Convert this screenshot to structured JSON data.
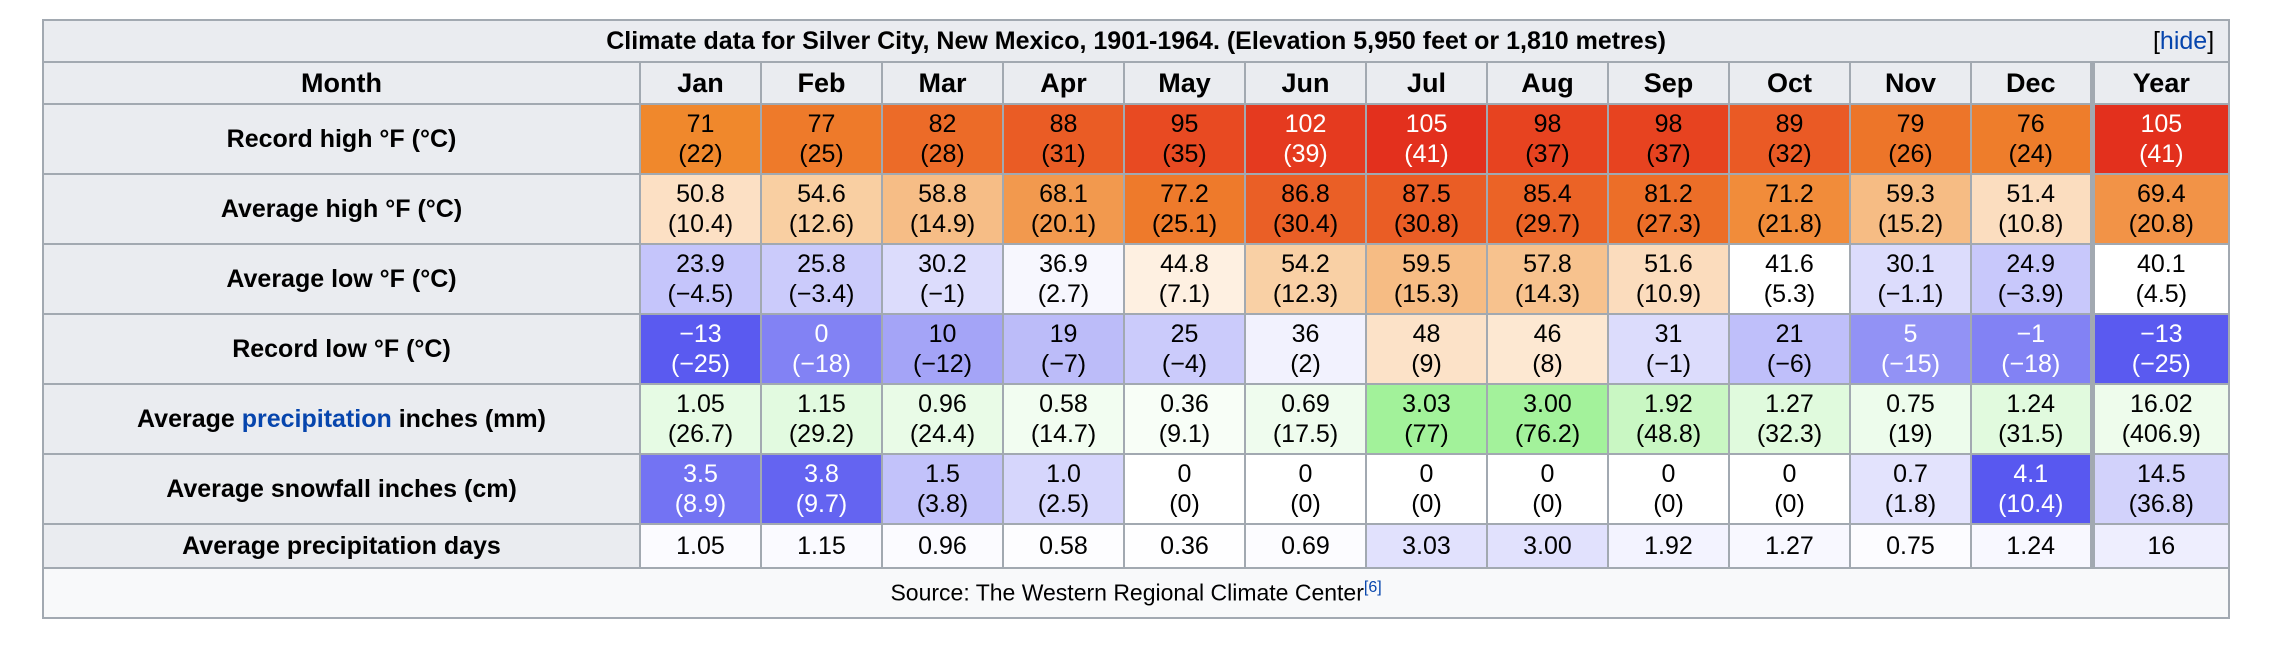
{
  "caption": "Climate data for Silver City, New Mexico, 1901-1964. (Elevation 5,950 feet or 1,810 metres)",
  "hide_link": {
    "open": "[",
    "label": "hide",
    "close": "]"
  },
  "header": [
    "Month",
    "Jan",
    "Feb",
    "Mar",
    "Apr",
    "May",
    "Jun",
    "Jul",
    "Aug",
    "Sep",
    "Oct",
    "Nov",
    "Dec",
    "Year"
  ],
  "rows": [
    {
      "label": "Record high °F (°C)",
      "cells": [
        {
          "f": "71",
          "c": "(22)",
          "bg": "#f0882c",
          "fg": "#000"
        },
        {
          "f": "77",
          "c": "(25)",
          "bg": "#ee7a2a",
          "fg": "#000"
        },
        {
          "f": "82",
          "c": "(28)",
          "bg": "#ec6b28",
          "fg": "#000"
        },
        {
          "f": "88",
          "c": "(31)",
          "bg": "#ea5c25",
          "fg": "#000"
        },
        {
          "f": "95",
          "c": "(35)",
          "bg": "#e84a22",
          "fg": "#000"
        },
        {
          "f": "102",
          "c": "(39)",
          "bg": "#e53a1f",
          "fg": "#fff"
        },
        {
          "f": "105",
          "c": "(41)",
          "bg": "#e3301d",
          "fg": "#fff"
        },
        {
          "f": "98",
          "c": "(37)",
          "bg": "#e74320",
          "fg": "#000"
        },
        {
          "f": "98",
          "c": "(37)",
          "bg": "#e74320",
          "fg": "#000"
        },
        {
          "f": "89",
          "c": "(32)",
          "bg": "#ea5a25",
          "fg": "#000"
        },
        {
          "f": "79",
          "c": "(26)",
          "bg": "#ed7529",
          "fg": "#000"
        },
        {
          "f": "76",
          "c": "(24)",
          "bg": "#ee7d2b",
          "fg": "#000"
        },
        {
          "f": "105",
          "c": "(41)",
          "bg": "#e3301d",
          "fg": "#fff"
        }
      ]
    },
    {
      "label": "Average high °F (°C)",
      "cells": [
        {
          "f": "50.8",
          "c": "(10.4)",
          "bg": "#fce0c4",
          "fg": "#000"
        },
        {
          "f": "54.6",
          "c": "(12.6)",
          "bg": "#f9cfa2",
          "fg": "#000"
        },
        {
          "f": "58.8",
          "c": "(14.9)",
          "bg": "#f6bd86",
          "fg": "#000"
        },
        {
          "f": "68.1",
          "c": "(20.1)",
          "bg": "#f2994e",
          "fg": "#000"
        },
        {
          "f": "77.2",
          "c": "(25.1)",
          "bg": "#ee7a2b",
          "fg": "#000"
        },
        {
          "f": "86.8",
          "c": "(30.4)",
          "bg": "#ea5f26",
          "fg": "#000"
        },
        {
          "f": "87.5",
          "c": "(30.8)",
          "bg": "#ea5d25",
          "fg": "#000"
        },
        {
          "f": "85.4",
          "c": "(29.7)",
          "bg": "#eb6326",
          "fg": "#000"
        },
        {
          "f": "81.2",
          "c": "(27.3)",
          "bg": "#ec6e28",
          "fg": "#000"
        },
        {
          "f": "71.2",
          "c": "(21.8)",
          "bg": "#f18c3a",
          "fg": "#000"
        },
        {
          "f": "59.3",
          "c": "(15.2)",
          "bg": "#f6bc84",
          "fg": "#000"
        },
        {
          "f": "51.4",
          "c": "(10.8)",
          "bg": "#fbddbf",
          "fg": "#000"
        },
        {
          "f": "69.4",
          "c": "(20.8)",
          "bg": "#f29347",
          "fg": "#000"
        }
      ]
    },
    {
      "label": "Average low °F (°C)",
      "cells": [
        {
          "f": "23.9",
          "c": "(−4.5)",
          "bg": "#c5c5fb",
          "fg": "#000"
        },
        {
          "f": "25.8",
          "c": "(−3.4)",
          "bg": "#cbcbfb",
          "fg": "#000"
        },
        {
          "f": "30.2",
          "c": "(−1)",
          "bg": "#dcdcfc",
          "fg": "#000"
        },
        {
          "f": "36.9",
          "c": "(2.7)",
          "bg": "#f7f7fe",
          "fg": "#000"
        },
        {
          "f": "44.8",
          "c": "(7.1)",
          "bg": "#fef0e1",
          "fg": "#000"
        },
        {
          "f": "54.2",
          "c": "(12.3)",
          "bg": "#f9d0a5",
          "fg": "#000"
        },
        {
          "f": "59.5",
          "c": "(15.3)",
          "bg": "#f6bc84",
          "fg": "#000"
        },
        {
          "f": "57.8",
          "c": "(14.3)",
          "bg": "#f7c28e",
          "fg": "#000"
        },
        {
          "f": "51.6",
          "c": "(10.9)",
          "bg": "#fbdcbd",
          "fg": "#000"
        },
        {
          "f": "41.6",
          "c": "(5.3)",
          "bg": "#ffffff",
          "fg": "#000"
        },
        {
          "f": "30.1",
          "c": "(−1.1)",
          "bg": "#dcdcfc",
          "fg": "#000"
        },
        {
          "f": "24.9",
          "c": "(−3.9)",
          "bg": "#c8c8fb",
          "fg": "#000"
        },
        {
          "f": "40.1",
          "c": "(4.5)",
          "bg": "#ffffff",
          "fg": "#000"
        }
      ]
    },
    {
      "label": "Record low °F (°C)",
      "cells": [
        {
          "f": "−13",
          "c": "(−25)",
          "bg": "#5a5af0",
          "fg": "#fff"
        },
        {
          "f": "0",
          "c": "(−18)",
          "bg": "#8282f4",
          "fg": "#fff"
        },
        {
          "f": "10",
          "c": "(−12)",
          "bg": "#a4a4f7",
          "fg": "#000"
        },
        {
          "f": "19",
          "c": "(−7)",
          "bg": "#bcbcf9",
          "fg": "#000"
        },
        {
          "f": "25",
          "c": "(−4)",
          "bg": "#cbcbfb",
          "fg": "#000"
        },
        {
          "f": "36",
          "c": "(2)",
          "bg": "#f2f2fe",
          "fg": "#000"
        },
        {
          "f": "48",
          "c": "(9)",
          "bg": "#fce2c8",
          "fg": "#000"
        },
        {
          "f": "46",
          "c": "(8)",
          "bg": "#fde8d2",
          "fg": "#000"
        },
        {
          "f": "31",
          "c": "(−1)",
          "bg": "#dcdcfc",
          "fg": "#000"
        },
        {
          "f": "21",
          "c": "(−6)",
          "bg": "#bfbffa",
          "fg": "#000"
        },
        {
          "f": "5",
          "c": "(−15)",
          "bg": "#9292f5",
          "fg": "#fff"
        },
        {
          "f": "−1",
          "c": "(−18)",
          "bg": "#8282f4",
          "fg": "#fff"
        },
        {
          "f": "−13",
          "c": "(−25)",
          "bg": "#5a5af0",
          "fg": "#fff"
        }
      ]
    },
    {
      "label_pre": "Average ",
      "label_link": "precipitation",
      "label_post": " inches (mm)",
      "cells": [
        {
          "f": "1.05",
          "c": "(26.7)",
          "bg": "#e6fbe4",
          "fg": "#000"
        },
        {
          "f": "1.15",
          "c": "(29.2)",
          "bg": "#e2fae0",
          "fg": "#000"
        },
        {
          "f": "0.96",
          "c": "(24.4)",
          "bg": "#e9fbe7",
          "fg": "#000"
        },
        {
          "f": "0.58",
          "c": "(14.7)",
          "bg": "#f2fdf1",
          "fg": "#000"
        },
        {
          "f": "0.36",
          "c": "(9.1)",
          "bg": "#f8fef7",
          "fg": "#000"
        },
        {
          "f": "0.69",
          "c": "(17.5)",
          "bg": "#effcee",
          "fg": "#000"
        },
        {
          "f": "3.03",
          "c": "(77)",
          "bg": "#a2f29a",
          "fg": "#000"
        },
        {
          "f": "3.00",
          "c": "(76.2)",
          "bg": "#a3f29b",
          "fg": "#000"
        },
        {
          "f": "1.92",
          "c": "(48.8)",
          "bg": "#c9f7c3",
          "fg": "#000"
        },
        {
          "f": "1.27",
          "c": "(32.3)",
          "bg": "#e0faDD",
          "fg": "#000"
        },
        {
          "f": "0.75",
          "c": "(19)",
          "bg": "#edfcec",
          "fg": "#000"
        },
        {
          "f": "1.24",
          "c": "(31.5)",
          "bg": "#e1fade",
          "fg": "#000"
        },
        {
          "f": "16.02",
          "c": "(406.9)",
          "bg": "#eefcec",
          "fg": "#000"
        }
      ]
    },
    {
      "label": "Average snowfall inches (cm)",
      "cells": [
        {
          "f": "3.5",
          "c": "(8.9)",
          "bg": "#7373f3",
          "fg": "#fff"
        },
        {
          "f": "3.8",
          "c": "(9.7)",
          "bg": "#6464f1",
          "fg": "#fff"
        },
        {
          "f": "1.5",
          "c": "(3.8)",
          "bg": "#c2c2fa",
          "fg": "#000"
        },
        {
          "f": "1.0",
          "c": "(2.5)",
          "bg": "#d6d6fc",
          "fg": "#000"
        },
        {
          "f": "0",
          "c": "(0)",
          "bg": "#ffffff",
          "fg": "#000"
        },
        {
          "f": "0",
          "c": "(0)",
          "bg": "#ffffff",
          "fg": "#000"
        },
        {
          "f": "0",
          "c": "(0)",
          "bg": "#ffffff",
          "fg": "#000"
        },
        {
          "f": "0",
          "c": "(0)",
          "bg": "#ffffff",
          "fg": "#000"
        },
        {
          "f": "0",
          "c": "(0)",
          "bg": "#ffffff",
          "fg": "#000"
        },
        {
          "f": "0",
          "c": "(0)",
          "bg": "#ffffff",
          "fg": "#000"
        },
        {
          "f": "0.7",
          "c": "(1.8)",
          "bg": "#e3e3fd",
          "fg": "#000"
        },
        {
          "f": "4.1",
          "c": "(10.4)",
          "bg": "#5858f0",
          "fg": "#fff"
        },
        {
          "f": "14.5",
          "c": "(36.8)",
          "bg": "#d2d2fb",
          "fg": "#000"
        }
      ]
    }
  ],
  "precip_days": {
    "label": "Average precipitation days",
    "cells": [
      {
        "v": "1.05",
        "bg": "#fbfbff"
      },
      {
        "v": "1.15",
        "bg": "#fafaff"
      },
      {
        "v": "0.96",
        "bg": "#fbfbff"
      },
      {
        "v": "0.58",
        "bg": "#fdfdff"
      },
      {
        "v": "0.36",
        "bg": "#fefeff"
      },
      {
        "v": "0.69",
        "bg": "#fcfcff"
      },
      {
        "v": "3.03",
        "bg": "#e1e1fd"
      },
      {
        "v": "3.00",
        "bg": "#e1e1fd"
      },
      {
        "v": "1.92",
        "bg": "#f3f3ff"
      },
      {
        "v": "1.27",
        "bg": "#f8f8ff"
      },
      {
        "v": "0.75",
        "bg": "#fcfcff"
      },
      {
        "v": "1.24",
        "bg": "#f8f8ff"
      },
      {
        "v": "16",
        "bg": "#eeeefe"
      }
    ]
  },
  "source": {
    "text": "Source: The Western Regional Climate Center",
    "ref": "[6]"
  }
}
